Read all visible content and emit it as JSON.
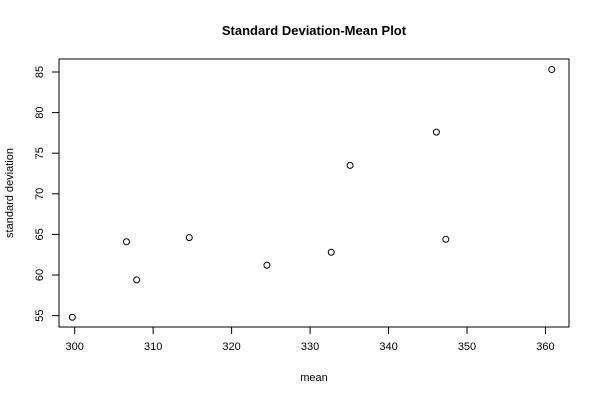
{
  "chart_data": {
    "type": "scatter",
    "title": "Standard Deviation-Mean Plot",
    "xlabel": "mean",
    "ylabel": "standard deviation",
    "xlim": [
      298,
      363
    ],
    "ylim": [
      53.6,
      86.6
    ],
    "xticks": [
      300,
      310,
      320,
      330,
      340,
      350,
      360
    ],
    "yticks": [
      55,
      60,
      65,
      70,
      75,
      80,
      85
    ],
    "grid": false,
    "marker": "open-circle",
    "points": [
      {
        "x": 299.7,
        "y": 54.8
      },
      {
        "x": 306.6,
        "y": 64.1
      },
      {
        "x": 307.9,
        "y": 59.4
      },
      {
        "x": 314.6,
        "y": 64.6
      },
      {
        "x": 324.5,
        "y": 61.2
      },
      {
        "x": 332.7,
        "y": 62.8
      },
      {
        "x": 335.1,
        "y": 73.5
      },
      {
        "x": 346.1,
        "y": 77.6
      },
      {
        "x": 347.3,
        "y": 64.4
      },
      {
        "x": 360.8,
        "y": 85.3
      }
    ]
  }
}
